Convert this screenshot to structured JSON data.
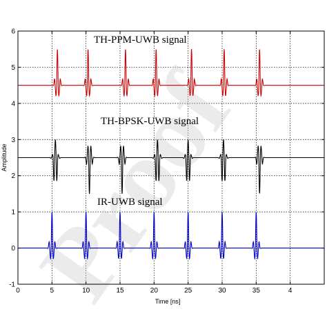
{
  "chart_data": {
    "type": "line",
    "xlabel": "Time [ns]",
    "ylabel": "Amplitude",
    "xlim": [
      0,
      45
    ],
    "ylim": [
      -1,
      6
    ],
    "xticks": [
      "0",
      "5",
      "10",
      "15",
      "20",
      "25",
      "30",
      "35",
      "4"
    ],
    "yticks": [
      "-1",
      "0",
      "1",
      "2",
      "3",
      "4",
      "5",
      "6"
    ],
    "grid": "dotted",
    "annotations": [
      "TH-PPM-UWB signal",
      "TH-BPSK-UWB signal",
      "IR-UWB signal"
    ],
    "watermark": "Proof",
    "series": [
      {
        "color": "#cc0000",
        "baseline": 4.5,
        "pulse_times": [
          5.8,
          10.3,
          15.8,
          20.3,
          25.5,
          30.3,
          35.5
        ],
        "polarity": [
          1,
          1,
          1,
          1,
          1,
          1,
          1
        ],
        "peak": 5.5,
        "trough": 4.05
      },
      {
        "color": "#000000",
        "baseline": 2.5,
        "pulse_times": [
          5.5,
          10.5,
          15.3,
          20.5,
          25.0,
          30.2,
          35.5
        ],
        "polarity": [
          1,
          -1,
          -1,
          1,
          1,
          1,
          -1
        ],
        "peak": 3.0,
        "trough": 1.5
      },
      {
        "color": "#0000cc",
        "baseline": 0.0,
        "pulse_times": [
          5.0,
          10.0,
          15.0,
          20.0,
          25.0,
          30.0,
          35.0
        ],
        "polarity": [
          1,
          1,
          1,
          1,
          1,
          1,
          1
        ],
        "peak": 1.0,
        "trough": -0.45
      }
    ]
  }
}
